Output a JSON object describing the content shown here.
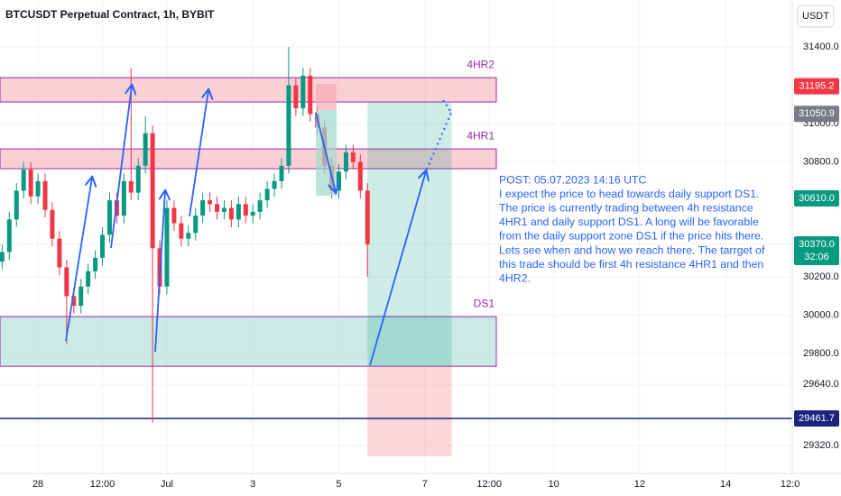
{
  "chart_data": {
    "type": "candlestick",
    "title": "BTCUSDT Perpetual Contract, 1h, BYBIT",
    "currency": "USDT",
    "x": [
      -20,
      -16,
      -12,
      -8,
      -4,
      0,
      4,
      8,
      12,
      16,
      20,
      24,
      28,
      32,
      36,
      40,
      44,
      48,
      52,
      56,
      60,
      64,
      68,
      72,
      76,
      80,
      84,
      88,
      92,
      96,
      100,
      104,
      108,
      112,
      116,
      120,
      124,
      128,
      132,
      136,
      140,
      144,
      148,
      152,
      156,
      160,
      164,
      168,
      172,
      176,
      180,
      184
    ],
    "open": [
      30280,
      30330,
      30500,
      30650,
      30760,
      30620,
      30700,
      30550,
      30400,
      30250,
      30100,
      30050,
      30150,
      30230,
      30300,
      30420,
      30600,
      30520,
      30700,
      30640,
      30780,
      30950,
      30350,
      30150,
      30560,
      30480,
      30400,
      30430,
      30520,
      30600,
      30580,
      30540,
      30560,
      30500,
      30580,
      30520,
      30540,
      30600,
      30660,
      30700,
      30780,
      31200,
      31080,
      31250,
      31050,
      30980,
      30780,
      30650,
      30750,
      30850,
      30800,
      30650
    ],
    "high": [
      30370,
      30540,
      30690,
      30800,
      30800,
      30740,
      30740,
      30590,
      30440,
      30290,
      30140,
      30190,
      30270,
      30340,
      30460,
      30640,
      30640,
      30740,
      31290,
      30820,
      31040,
      30990,
      30390,
      30600,
      30600,
      30520,
      30470,
      30560,
      30640,
      30640,
      30620,
      30600,
      30600,
      30620,
      30620,
      30580,
      30640,
      30700,
      30740,
      30820,
      31400,
      31240,
      31290,
      31290,
      31090,
      31020,
      30820,
      30790,
      30890,
      30890,
      30840,
      30690
    ],
    "low": [
      30240,
      30290,
      30460,
      30610,
      30580,
      30580,
      30510,
      30360,
      30210,
      29850,
      30010,
      30010,
      30110,
      30190,
      30260,
      30380,
      30480,
      30480,
      30600,
      30600,
      30740,
      29440,
      30110,
      30110,
      30440,
      30360,
      30360,
      30390,
      30480,
      30540,
      30500,
      30500,
      30460,
      30460,
      30480,
      30480,
      30500,
      30560,
      30620,
      30660,
      30740,
      31040,
      31040,
      31010,
      30940,
      30740,
      30610,
      30610,
      30710,
      30760,
      30610,
      30200
    ],
    "close": [
      30330,
      30500,
      30650,
      30760,
      30620,
      30700,
      30550,
      30400,
      30250,
      30100,
      30050,
      30150,
      30230,
      30300,
      30420,
      30600,
      30520,
      30700,
      30640,
      30780,
      30950,
      30350,
      30150,
      30560,
      30480,
      30400,
      30430,
      30520,
      30600,
      30580,
      30540,
      30560,
      30500,
      30580,
      30520,
      30540,
      30600,
      30660,
      30700,
      30780,
      31200,
      31080,
      31250,
      31050,
      30980,
      30780,
      30650,
      30750,
      30850,
      30800,
      30650,
      30370
    ],
    "up_color": "#089981",
    "down_color": "#f23645",
    "xlim": [
      -21.2,
      421.2
    ],
    "ylim": [
      29175,
      31645
    ],
    "xticks": [
      {
        "value": 0,
        "label": "28"
      },
      {
        "value": 36,
        "label": "12:00"
      },
      {
        "value": 72,
        "label": "Jul"
      },
      {
        "value": 120,
        "label": "3"
      },
      {
        "value": 168,
        "label": "5"
      },
      {
        "value": 216,
        "label": "7"
      },
      {
        "value": 252,
        "label": "12:00"
      },
      {
        "value": 288,
        "label": "10"
      },
      {
        "value": 336,
        "label": "12"
      },
      {
        "value": 384,
        "label": "14"
      },
      {
        "value": 420,
        "label": "12:0"
      }
    ],
    "yticks": [
      {
        "value": 31400,
        "label": "31400.0"
      },
      {
        "value": 31000,
        "label": "31000.0"
      },
      {
        "value": 30800,
        "label": "30800.0"
      },
      {
        "value": 30200,
        "label": "30200.0"
      },
      {
        "value": 30000,
        "label": "30000.0"
      },
      {
        "value": 29800,
        "label": "29800.0"
      },
      {
        "value": 29640,
        "label": "29640.0"
      },
      {
        "value": 29320,
        "label": "29320.0"
      }
    ],
    "zones": [
      {
        "label": "4HR2",
        "top": 31240,
        "bottom": 31113,
        "color": "#f7a9b3"
      },
      {
        "label": "4HR1",
        "top": 30868,
        "bottom": 30765,
        "color": "#f7a9b3"
      },
      {
        "label": "DS1",
        "top": 29993,
        "bottom": 29734,
        "color": "#9fd8cc"
      }
    ],
    "support_line": 29461.7,
    "position": {
      "x_start": 184,
      "x_end": 231,
      "entry": 29734,
      "target": 31113,
      "stop": 29264
    },
    "price_tags": [
      {
        "value": 31195.2,
        "color": "#f23645"
      },
      {
        "value": 31050.9,
        "color": "#787b86"
      },
      {
        "value": 30610,
        "label": "30610.0",
        "color": "#089981"
      },
      {
        "value": 30370,
        "label": "30370.0",
        "color": "#089981",
        "countdown": "32:06"
      },
      {
        "value": 29461.7,
        "color": "#1a237e"
      }
    ],
    "note": [
      "POST: 05.07.2023 14:16 UTC",
      "I expect the price to head towards daily support DS1.",
      "The price is currently trading between 4h resistance",
      "4HR1 and daily support DS1. A long will be favorable",
      "from the daily support zone DS1 if the price hits there.",
      "Lets see when and how we reach there. The tarrget of",
      "this trade should be first 4h resistance 4HR1 and then",
      "4HR2."
    ]
  }
}
